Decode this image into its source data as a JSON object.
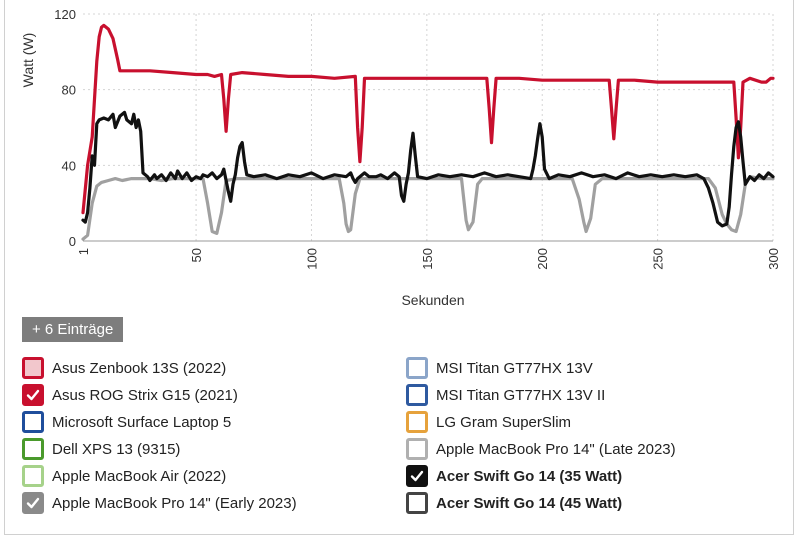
{
  "chart_data": {
    "type": "line",
    "xlabel": "Sekunden",
    "ylabel": "Watt (W)",
    "xlim": [
      1,
      300
    ],
    "ylim": [
      0,
      120
    ],
    "xticks": [
      1,
      50,
      100,
      150,
      200,
      250,
      300
    ],
    "yticks": [
      0,
      40,
      80,
      120
    ],
    "grid": true,
    "series": [
      {
        "name": "Apple MacBook Pro 14\" (Early 2023)",
        "color": "#a0a0a0",
        "points": [
          [
            1,
            1
          ],
          [
            3,
            3
          ],
          [
            5,
            20
          ],
          [
            7,
            29
          ],
          [
            9,
            31
          ],
          [
            12,
            32
          ],
          [
            15,
            33
          ],
          [
            18,
            32
          ],
          [
            22,
            33
          ],
          [
            27,
            33
          ],
          [
            30,
            33
          ],
          [
            35,
            32
          ],
          [
            40,
            33
          ],
          [
            45,
            33
          ],
          [
            50,
            33
          ],
          [
            53,
            33
          ],
          [
            55,
            20
          ],
          [
            57,
            5
          ],
          [
            59,
            4
          ],
          [
            61,
            15
          ],
          [
            63,
            32
          ],
          [
            68,
            33
          ],
          [
            75,
            33
          ],
          [
            85,
            33
          ],
          [
            95,
            33
          ],
          [
            105,
            33
          ],
          [
            112,
            33
          ],
          [
            114,
            20
          ],
          [
            115,
            9
          ],
          [
            116,
            5
          ],
          [
            117,
            6
          ],
          [
            119,
            25
          ],
          [
            121,
            33
          ],
          [
            130,
            33
          ],
          [
            140,
            33
          ],
          [
            150,
            33
          ],
          [
            160,
            33
          ],
          [
            165,
            33
          ],
          [
            166,
            22
          ],
          [
            167,
            11
          ],
          [
            168,
            6
          ],
          [
            170,
            10
          ],
          [
            172,
            30
          ],
          [
            174,
            33
          ],
          [
            185,
            33
          ],
          [
            195,
            33
          ],
          [
            205,
            33
          ],
          [
            213,
            33
          ],
          [
            216,
            22
          ],
          [
            218,
            10
          ],
          [
            219,
            5
          ],
          [
            221,
            12
          ],
          [
            223,
            30
          ],
          [
            226,
            33
          ],
          [
            240,
            33
          ],
          [
            255,
            33
          ],
          [
            265,
            33
          ],
          [
            272,
            33
          ],
          [
            275,
            28
          ],
          [
            278,
            14
          ],
          [
            280,
            9
          ],
          [
            282,
            6
          ],
          [
            284,
            5
          ],
          [
            286,
            14
          ],
          [
            288,
            30
          ],
          [
            290,
            34
          ],
          [
            295,
            33
          ],
          [
            300,
            33
          ]
        ]
      },
      {
        "name": "Asus ROG Strix G15 (2021)",
        "color": "#c8102e",
        "points": [
          [
            1,
            15
          ],
          [
            3,
            40
          ],
          [
            5,
            55
          ],
          [
            6,
            75
          ],
          [
            7,
            95
          ],
          [
            8,
            108
          ],
          [
            9,
            113
          ],
          [
            10,
            114
          ],
          [
            12,
            112
          ],
          [
            14,
            107
          ],
          [
            16,
            96
          ],
          [
            17,
            90
          ],
          [
            20,
            90
          ],
          [
            30,
            90
          ],
          [
            40,
            89
          ],
          [
            50,
            88
          ],
          [
            55,
            88
          ],
          [
            58,
            87
          ],
          [
            61,
            88
          ],
          [
            62,
            75
          ],
          [
            63,
            58
          ],
          [
            64,
            75
          ],
          [
            65,
            88
          ],
          [
            70,
            89
          ],
          [
            80,
            88
          ],
          [
            90,
            87
          ],
          [
            100,
            87
          ],
          [
            110,
            86
          ],
          [
            119,
            87
          ],
          [
            120,
            60
          ],
          [
            121,
            42
          ],
          [
            122,
            60
          ],
          [
            123,
            86
          ],
          [
            130,
            86
          ],
          [
            140,
            86
          ],
          [
            150,
            86
          ],
          [
            160,
            86
          ],
          [
            170,
            86
          ],
          [
            176,
            86
          ],
          [
            177,
            70
          ],
          [
            178,
            52
          ],
          [
            179,
            70
          ],
          [
            180,
            86
          ],
          [
            190,
            86
          ],
          [
            200,
            85
          ],
          [
            210,
            85
          ],
          [
            220,
            85
          ],
          [
            229,
            85
          ],
          [
            230,
            70
          ],
          [
            231,
            54
          ],
          [
            232,
            70
          ],
          [
            233,
            85
          ],
          [
            240,
            85
          ],
          [
            250,
            84
          ],
          [
            260,
            84
          ],
          [
            270,
            84
          ],
          [
            280,
            84
          ],
          [
            283,
            84
          ],
          [
            284,
            65
          ],
          [
            285,
            44
          ],
          [
            286,
            60
          ],
          [
            287,
            84
          ],
          [
            290,
            86
          ],
          [
            295,
            84
          ],
          [
            297,
            84
          ],
          [
            299,
            86
          ],
          [
            300,
            86
          ]
        ]
      },
      {
        "name": "Acer Swift Go 14 (35 Watt)",
        "color": "#111111",
        "points": [
          [
            1,
            11
          ],
          [
            2,
            10
          ],
          [
            3,
            15
          ],
          [
            4,
            28
          ],
          [
            5,
            45
          ],
          [
            6,
            40
          ],
          [
            7,
            62
          ],
          [
            8,
            64
          ],
          [
            10,
            65
          ],
          [
            12,
            64
          ],
          [
            14,
            67
          ],
          [
            15,
            60
          ],
          [
            17,
            66
          ],
          [
            19,
            68
          ],
          [
            20,
            64
          ],
          [
            22,
            62
          ],
          [
            23,
            67
          ],
          [
            24,
            60
          ],
          [
            25,
            64
          ],
          [
            26,
            58
          ],
          [
            27,
            36
          ],
          [
            29,
            34
          ],
          [
            30,
            32
          ],
          [
            32,
            35
          ],
          [
            33,
            33
          ],
          [
            35,
            35
          ],
          [
            37,
            32
          ],
          [
            39,
            36
          ],
          [
            41,
            33
          ],
          [
            42,
            37
          ],
          [
            44,
            33
          ],
          [
            46,
            36
          ],
          [
            48,
            32
          ],
          [
            50,
            34
          ],
          [
            52,
            33
          ],
          [
            53,
            35
          ],
          [
            55,
            34
          ],
          [
            57,
            36
          ],
          [
            59,
            33
          ],
          [
            61,
            35
          ],
          [
            62,
            38
          ],
          [
            63,
            32
          ],
          [
            64,
            26
          ],
          [
            65,
            21
          ],
          [
            66,
            30
          ],
          [
            67,
            35
          ],
          [
            68,
            44
          ],
          [
            69,
            50
          ],
          [
            70,
            52
          ],
          [
            71,
            42
          ],
          [
            72,
            35
          ],
          [
            75,
            34
          ],
          [
            80,
            35
          ],
          [
            85,
            33
          ],
          [
            90,
            35
          ],
          [
            95,
            34
          ],
          [
            100,
            36
          ],
          [
            105,
            33
          ],
          [
            110,
            35
          ],
          [
            115,
            34
          ],
          [
            117,
            36
          ],
          [
            118,
            33
          ],
          [
            119,
            31
          ],
          [
            120,
            33
          ],
          [
            123,
            36
          ],
          [
            125,
            34
          ],
          [
            128,
            34
          ],
          [
            130,
            35
          ],
          [
            133,
            33
          ],
          [
            136,
            36
          ],
          [
            138,
            34
          ],
          [
            139,
            24
          ],
          [
            140,
            21
          ],
          [
            141,
            30
          ],
          [
            142,
            36
          ],
          [
            143,
            48
          ],
          [
            144,
            57
          ],
          [
            145,
            45
          ],
          [
            146,
            34
          ],
          [
            150,
            33
          ],
          [
            155,
            35
          ],
          [
            160,
            34
          ],
          [
            165,
            35
          ],
          [
            170,
            34
          ],
          [
            175,
            36
          ],
          [
            180,
            34
          ],
          [
            185,
            35
          ],
          [
            190,
            34
          ],
          [
            195,
            33
          ],
          [
            196,
            38
          ],
          [
            197,
            45
          ],
          [
            198,
            54
          ],
          [
            199,
            62
          ],
          [
            200,
            55
          ],
          [
            201,
            38
          ],
          [
            203,
            33
          ],
          [
            207,
            35
          ],
          [
            212,
            34
          ],
          [
            217,
            36
          ],
          [
            222,
            34
          ],
          [
            227,
            35
          ],
          [
            232,
            33
          ],
          [
            237,
            36
          ],
          [
            242,
            34
          ],
          [
            247,
            35
          ],
          [
            252,
            34
          ],
          [
            257,
            35
          ],
          [
            262,
            34
          ],
          [
            267,
            35
          ],
          [
            270,
            33
          ],
          [
            272,
            28
          ],
          [
            274,
            20
          ],
          [
            276,
            10
          ],
          [
            278,
            8
          ],
          [
            280,
            9
          ],
          [
            281,
            18
          ],
          [
            282,
            35
          ],
          [
            283,
            50
          ],
          [
            284,
            60
          ],
          [
            285,
            63
          ],
          [
            286,
            55
          ],
          [
            287,
            42
          ],
          [
            288,
            30
          ],
          [
            290,
            34
          ],
          [
            292,
            32
          ],
          [
            294,
            35
          ],
          [
            296,
            33
          ],
          [
            298,
            36
          ],
          [
            300,
            34
          ]
        ]
      }
    ]
  },
  "more_button": {
    "label": "+ 6 Einträge"
  },
  "legend": {
    "items": [
      {
        "label": "Asus Zenbook 13S (2022)",
        "color": "#c8102e",
        "fill": "#f2c7cc",
        "checked": false,
        "bold": false
      },
      {
        "label": "Asus ROG Strix G15 (2021)",
        "color": "#c8102e",
        "fill": "#c8102e",
        "checked": true,
        "bold": false
      },
      {
        "label": "Microsoft Surface Laptop 5",
        "color": "#1f4e9c",
        "fill": "#ffffff",
        "checked": false,
        "bold": false
      },
      {
        "label": "Dell XPS 13 (9315)",
        "color": "#4a9a2c",
        "fill": "#ffffff",
        "checked": false,
        "bold": false
      },
      {
        "label": "Apple MacBook Air (2022)",
        "color": "#a6d28a",
        "fill": "#ffffff",
        "checked": false,
        "bold": false
      },
      {
        "label": "Apple MacBook Pro 14\" (Early 2023)",
        "color": "#8a8a8a",
        "fill": "#8a8a8a",
        "checked": true,
        "bold": false
      },
      {
        "label": "MSI Titan GT77HX 13V",
        "color": "#8ba5c9",
        "fill": "#ffffff",
        "checked": false,
        "bold": false
      },
      {
        "label": "MSI Titan GT77HX 13V II",
        "color": "#2f5aa0",
        "fill": "#ffffff",
        "checked": false,
        "bold": false
      },
      {
        "label": "LG Gram SuperSlim",
        "color": "#e6a23c",
        "fill": "#ffffff",
        "checked": false,
        "bold": false
      },
      {
        "label": "Apple MacBook Pro 14\" (Late 2023)",
        "color": "#b0b0b0",
        "fill": "#ffffff",
        "checked": false,
        "bold": false
      },
      {
        "label": "Acer Swift Go 14 (35 Watt)",
        "color": "#111111",
        "fill": "#111111",
        "checked": true,
        "bold": true
      },
      {
        "label": "Acer Swift Go 14 (45 Watt)",
        "color": "#444444",
        "fill": "#ffffff",
        "checked": false,
        "bold": true
      }
    ]
  }
}
